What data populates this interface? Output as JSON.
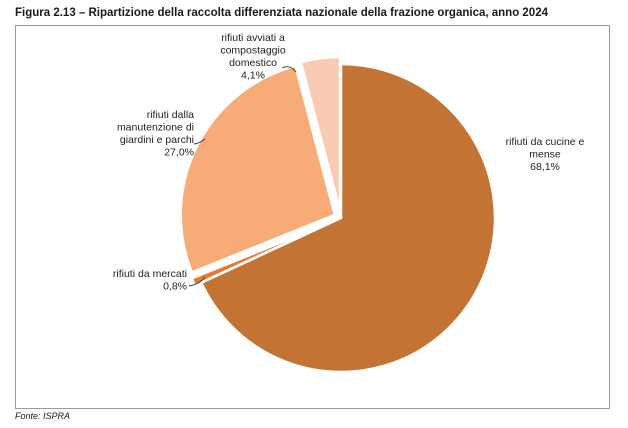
{
  "figure": {
    "title": "Figura 2.13 – Ripartizione della raccolta differenziata nazionale della frazione organica, anno 2024",
    "source": "Fonte: ISPRA"
  },
  "chart_data": {
    "type": "pie",
    "start_angle_deg": 0,
    "direction": "clockwise",
    "slices": [
      {
        "label_lines": [
          "rifiuti da cucine e",
          "mense"
        ],
        "value": 68.1,
        "value_label": "68,1%",
        "color": "#c37434",
        "label_side": "right"
      },
      {
        "label_lines": [
          "rifiuti da mercati"
        ],
        "value": 0.8,
        "value_label": "0,8%",
        "color": "#e07d33",
        "label_side": "left"
      },
      {
        "label_lines": [
          "rifiuti dalla",
          "manutenzione di",
          "giardini e parchi"
        ],
        "value": 27.0,
        "value_label": "27,0%",
        "color": "#f7ac78",
        "label_side": "left"
      },
      {
        "label_lines": [
          "rifiuti avviati a",
          "compostaggio",
          "domestico"
        ],
        "value": 4.1,
        "value_label": "4,1%",
        "color": "#f8cbb2",
        "label_side": "top"
      }
    ]
  }
}
